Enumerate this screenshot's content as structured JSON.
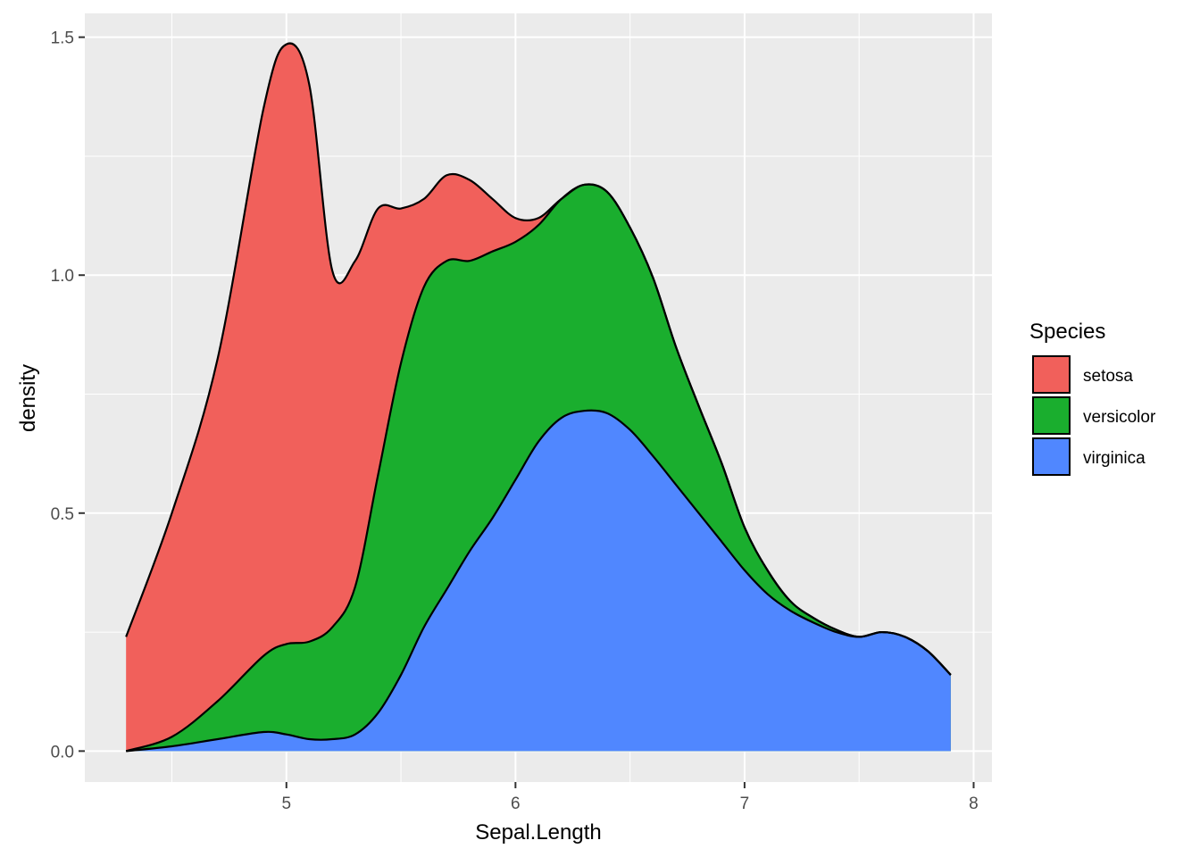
{
  "chart_data": {
    "type": "area",
    "stacked": true,
    "title": "",
    "xlabel": "Sepal.Length",
    "ylabel": "density",
    "xlim": [
      4.12,
      8.08
    ],
    "ylim": [
      -0.065,
      1.55
    ],
    "x_ticks": [
      5,
      6,
      7,
      8
    ],
    "x_tick_labels": [
      "5",
      "6",
      "7",
      "8"
    ],
    "y_ticks": [
      0.0,
      0.5,
      1.0,
      1.5
    ],
    "y_tick_labels": [
      "0.0",
      "0.5",
      "1.0",
      "1.5"
    ],
    "grid": true,
    "legend_title": "Species",
    "legend_position": "right",
    "x": [
      4.3,
      4.5,
      4.7,
      4.9,
      5.0,
      5.1,
      5.2,
      5.3,
      5.4,
      5.5,
      5.6,
      5.7,
      5.8,
      5.9,
      6.0,
      6.1,
      6.2,
      6.3,
      6.4,
      6.5,
      6.6,
      6.7,
      6.8,
      6.9,
      7.0,
      7.1,
      7.2,
      7.3,
      7.4,
      7.5,
      7.6,
      7.7,
      7.8,
      7.9
    ],
    "series": [
      {
        "name": "virginica",
        "color": "#5087ff",
        "values": [
          0.0,
          0.01,
          0.025,
          0.04,
          0.035,
          0.025,
          0.025,
          0.035,
          0.08,
          0.16,
          0.26,
          0.34,
          0.42,
          0.49,
          0.57,
          0.65,
          0.7,
          0.715,
          0.71,
          0.675,
          0.62,
          0.56,
          0.5,
          0.44,
          0.38,
          0.33,
          0.295,
          0.27,
          0.25,
          0.24,
          0.25,
          0.24,
          0.21,
          0.16
        ]
      },
      {
        "name": "versicolor",
        "color": "#1aae2e",
        "values": [
          0.0,
          0.02,
          0.08,
          0.16,
          0.19,
          0.205,
          0.235,
          0.31,
          0.5,
          0.655,
          0.715,
          0.69,
          0.61,
          0.56,
          0.5,
          0.455,
          0.46,
          0.475,
          0.465,
          0.425,
          0.375,
          0.29,
          0.225,
          0.165,
          0.09,
          0.05,
          0.02,
          0.01,
          0.005,
          0.0,
          0.0,
          0.0,
          0.0,
          0.0
        ]
      },
      {
        "name": "setosa",
        "color": "#f1605b",
        "values": [
          0.24,
          0.47,
          0.72,
          1.15,
          1.26,
          1.17,
          0.75,
          0.685,
          0.56,
          0.325,
          0.185,
          0.18,
          0.17,
          0.11,
          0.05,
          0.015,
          0.0,
          0.0,
          0.0,
          0.0,
          0.0,
          0.0,
          0.0,
          0.0,
          0.0,
          0.0,
          0.0,
          0.0,
          0.0,
          0.0,
          0.0,
          0.0,
          0.0,
          0.0
        ]
      }
    ],
    "legend_order": [
      "setosa",
      "versicolor",
      "virginica"
    ]
  }
}
